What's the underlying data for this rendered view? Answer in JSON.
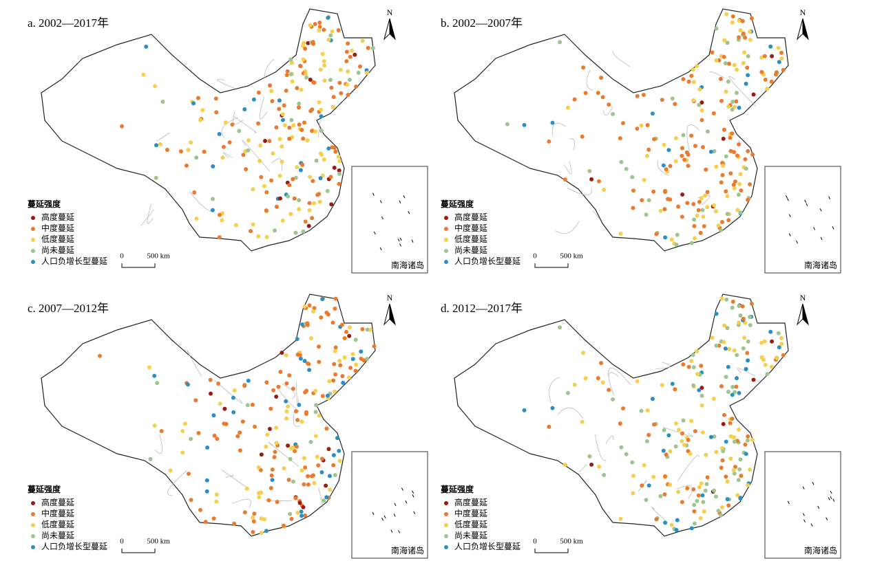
{
  "panels": [
    {
      "title": "a. 2002—2017年"
    },
    {
      "title": "b. 2002—2007年"
    },
    {
      "title": "c. 2007—2012年"
    },
    {
      "title": "d. 2012—2017年"
    }
  ],
  "legend": {
    "title": "蔓延强度",
    "items": [
      {
        "label": "高度蔓延",
        "color": "#9b1b10"
      },
      {
        "label": "中度蔓延",
        "color": "#ec7a2e"
      },
      {
        "label": "低度蔓延",
        "color": "#f7cf4d"
      },
      {
        "label": "尚未蔓延",
        "color": "#9cc58f"
      },
      {
        "label": "人口负增长型蔓延",
        "color": "#2a8fc4"
      }
    ]
  },
  "scale": {
    "zero": "0",
    "label": "500 km"
  },
  "north": "N",
  "inset_label": "南海诸岛"
}
